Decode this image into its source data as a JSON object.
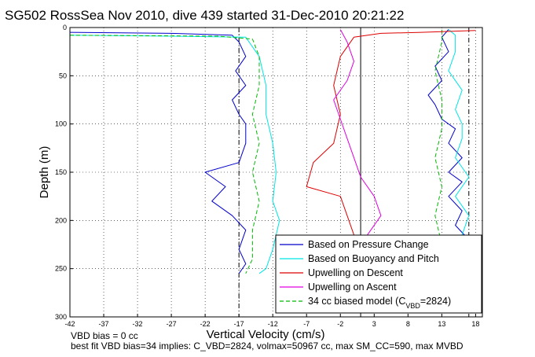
{
  "chart_data": {
    "type": "line",
    "title": "SG502 RossSea Nov 2010, dive 439 started 31-Dec-2010 20:21:22",
    "xlabel": "Vertical Velocity (cm/s)",
    "ylabel": "Depth (m)",
    "xlim": [
      -42,
      19
    ],
    "ylim": [
      0,
      300
    ],
    "y_reversed": true,
    "x_ticks": [
      -42,
      -37,
      -32,
      -27,
      -22,
      -17,
      -12,
      -7,
      -2,
      3,
      8,
      13,
      18
    ],
    "y_ticks": [
      0,
      50,
      100,
      150,
      200,
      250,
      300
    ],
    "grid": true,
    "legend_position": "bottom-right",
    "legend": [
      {
        "label": "Based on Pressure Change",
        "color": "#0000cc",
        "dash": "solid"
      },
      {
        "label": "Based on Buoyancy and Pitch",
        "color": "#00e5e5",
        "dash": "solid"
      },
      {
        "label": "Upwelling on Descent",
        "color": "#dd0000",
        "dash": "solid"
      },
      {
        "label": "Upwelling on Ascent",
        "color": "#e000e0",
        "dash": "solid"
      },
      {
        "label_main": "34 cc biased model (C",
        "label_sub": "VBD",
        "label_tail": "=2824)",
        "color": "#00bb00",
        "dash": "dashed"
      }
    ],
    "vertical_lines": [
      {
        "x": -17,
        "style": "dashdot"
      },
      {
        "x": 1,
        "style": "solid"
      },
      {
        "x": 17,
        "style": "dashdot"
      }
    ],
    "series": [
      {
        "key": "pressure_descent",
        "color": "#0000cc",
        "points": [
          [
            -42,
            5
          ],
          [
            -27,
            6
          ],
          [
            -18,
            8
          ],
          [
            -17,
            15
          ],
          [
            -16,
            30
          ],
          [
            -17.5,
            45
          ],
          [
            -16,
            60
          ],
          [
            -18,
            75
          ],
          [
            -17,
            90
          ],
          [
            -16,
            100
          ],
          [
            -16,
            120
          ],
          [
            -17,
            140
          ],
          [
            -22,
            150
          ],
          [
            -19,
            165
          ],
          [
            -21,
            180
          ],
          [
            -18,
            195
          ],
          [
            -16,
            210
          ],
          [
            -17,
            230
          ],
          [
            -16,
            245
          ],
          [
            -17,
            255
          ]
        ]
      },
      {
        "key": "pressure_ascent",
        "color": "#0000cc",
        "points": [
          [
            17,
            255
          ],
          [
            16,
            240
          ],
          [
            17,
            220
          ],
          [
            15,
            205
          ],
          [
            16,
            190
          ],
          [
            14,
            175
          ],
          [
            16,
            160
          ],
          [
            14,
            150
          ],
          [
            16,
            135
          ],
          [
            14,
            120
          ],
          [
            15,
            105
          ],
          [
            13,
            95
          ],
          [
            12,
            80
          ],
          [
            11,
            70
          ],
          [
            13,
            55
          ],
          [
            12,
            40
          ],
          [
            14,
            25
          ],
          [
            13,
            10
          ],
          [
            14,
            2
          ]
        ]
      },
      {
        "key": "buoyancy_descent",
        "color": "#00e5e5",
        "points": [
          [
            -42,
            8
          ],
          [
            -27,
            9
          ],
          [
            -16,
            10
          ],
          [
            -14,
            30
          ],
          [
            -13,
            60
          ],
          [
            -13,
            90
          ],
          [
            -12,
            120
          ],
          [
            -11.5,
            150
          ],
          [
            -12,
            180
          ],
          [
            -11,
            200
          ],
          [
            -12,
            230
          ],
          [
            -13,
            250
          ],
          [
            -14,
            255
          ]
        ]
      },
      {
        "key": "buoyancy_ascent",
        "color": "#00e5e5",
        "points": [
          [
            16,
            255
          ],
          [
            17,
            235
          ],
          [
            16,
            215
          ],
          [
            17,
            195
          ],
          [
            15,
            175
          ],
          [
            17,
            155
          ],
          [
            15,
            135
          ],
          [
            16,
            115
          ],
          [
            16,
            100
          ],
          [
            15,
            85
          ],
          [
            16,
            65
          ],
          [
            14,
            45
          ],
          [
            15,
            25
          ],
          [
            15,
            8
          ],
          [
            14,
            2
          ]
        ]
      },
      {
        "key": "model_descent",
        "color": "#00bb00",
        "points": [
          [
            -42,
            8
          ],
          [
            -20,
            9
          ],
          [
            -15,
            12
          ],
          [
            -14,
            30
          ],
          [
            -14,
            60
          ],
          [
            -15,
            90
          ],
          [
            -14,
            120
          ],
          [
            -15,
            150
          ],
          [
            -14,
            180
          ],
          [
            -15,
            210
          ],
          [
            -15,
            240
          ],
          [
            -16,
            255
          ]
        ]
      },
      {
        "key": "model_ascent",
        "color": "#00bb00",
        "points": [
          [
            12,
            255
          ],
          [
            13,
            225
          ],
          [
            12,
            195
          ],
          [
            13,
            165
          ],
          [
            12,
            135
          ],
          [
            13,
            105
          ],
          [
            13,
            75
          ],
          [
            12,
            45
          ],
          [
            13,
            15
          ],
          [
            13,
            2
          ]
        ]
      },
      {
        "key": "upwelling_descent",
        "color": "#dd0000",
        "points": [
          [
            18,
            3
          ],
          [
            10,
            5
          ],
          [
            4,
            6
          ],
          [
            0,
            10
          ],
          [
            -2,
            30
          ],
          [
            -3,
            60
          ],
          [
            -2,
            90
          ],
          [
            -3,
            120
          ],
          [
            -6,
            140
          ],
          [
            -7,
            165
          ],
          [
            -2,
            175
          ],
          [
            -1,
            195
          ],
          [
            0,
            215
          ],
          [
            1,
            235
          ],
          [
            1,
            255
          ]
        ]
      },
      {
        "key": "upwelling_ascent",
        "color": "#e000e0",
        "points": [
          [
            0,
            255
          ],
          [
            1,
            235
          ],
          [
            2,
            215
          ],
          [
            4,
            195
          ],
          [
            3,
            175
          ],
          [
            1,
            155
          ],
          [
            0,
            135
          ],
          [
            -1,
            115
          ],
          [
            -2,
            95
          ],
          [
            -3,
            75
          ],
          [
            -1,
            55
          ],
          [
            0,
            35
          ],
          [
            -1,
            15
          ],
          [
            -2,
            2
          ]
        ]
      }
    ]
  },
  "footer": {
    "line1": "VBD bias = 0 cc",
    "line2": "best fit VBD bias=34 implies: C_VBD=2824, volmax=50967 cc, max SM_CC=590, max MVBD"
  }
}
